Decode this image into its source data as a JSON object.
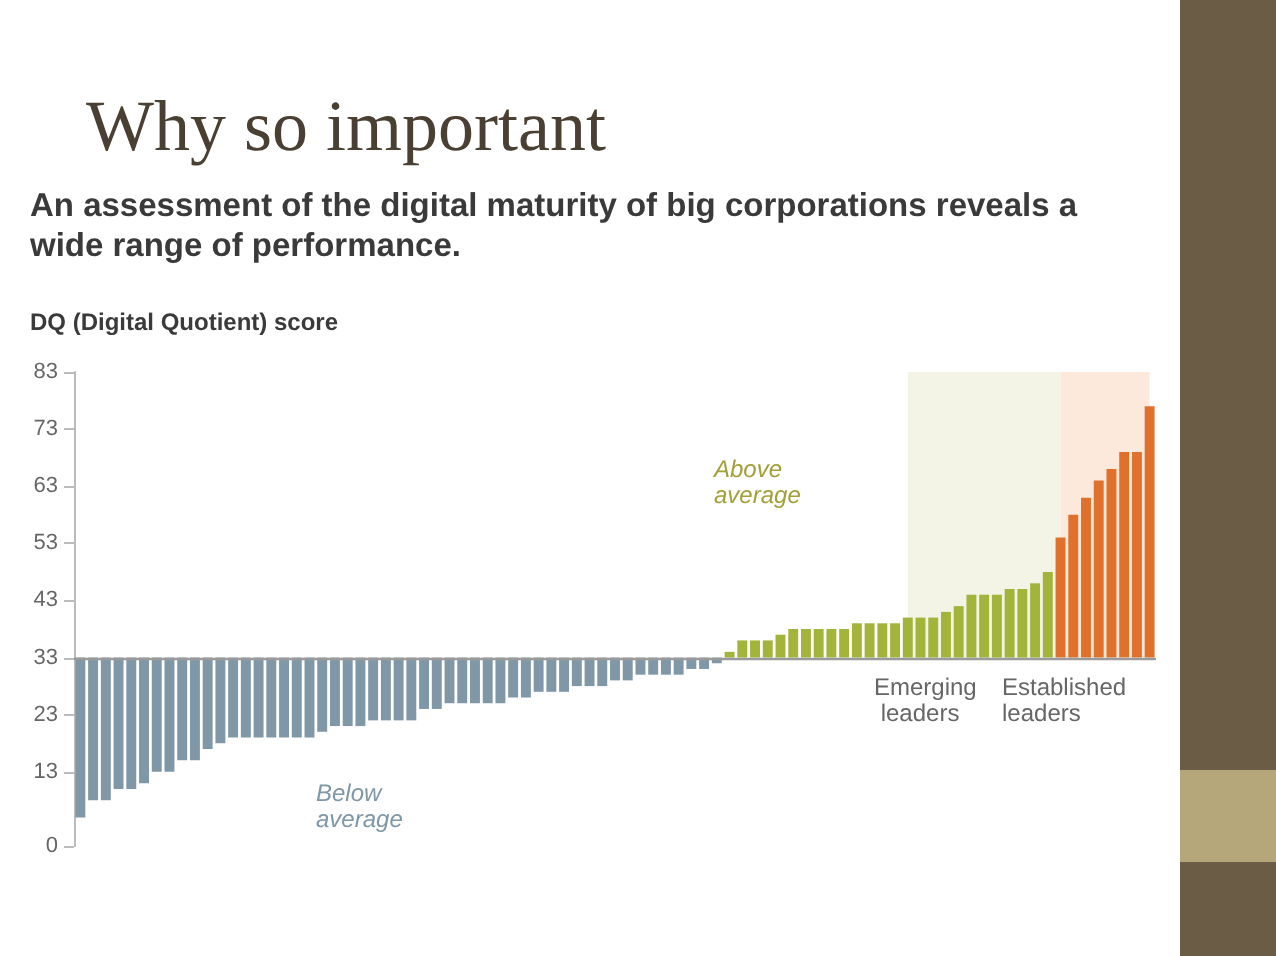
{
  "chart_data": {
    "type": "bar",
    "title": "Why so important",
    "subtitle": "An assessment of the digital maturity of big corporations reveals a wide range of performance.",
    "ylabel": "DQ (Digital Quotient) score",
    "categories": [
      null,
      null,
      null,
      null,
      null,
      null,
      null,
      null,
      null,
      null,
      null,
      null,
      null,
      null,
      null,
      null,
      null,
      null,
      null,
      null,
      null,
      null,
      null,
      null,
      null,
      null,
      null,
      null,
      null,
      null,
      null,
      null,
      null,
      null,
      null,
      null,
      null,
      null,
      null,
      null,
      null,
      null,
      null,
      null,
      null,
      null,
      null,
      null,
      null,
      null,
      null,
      null,
      null,
      null,
      null,
      null,
      null,
      null,
      null,
      null,
      null,
      null,
      null,
      null,
      null,
      null,
      null,
      null,
      null,
      null,
      null,
      null,
      null,
      null,
      null,
      null,
      null,
      null,
      null,
      null,
      null,
      null,
      null,
      null,
      null
    ],
    "ylim": [
      0,
      83
    ],
    "yticks": [
      0,
      13,
      23,
      33,
      43,
      53,
      63,
      73,
      83
    ],
    "tick_labels": "y",
    "grid": false,
    "base": [
      33,
      33,
      33,
      33,
      33,
      33,
      33,
      33,
      33,
      33,
      33,
      33,
      33,
      33,
      33,
      33,
      33,
      33,
      33,
      33,
      33,
      33,
      33,
      33,
      33,
      33,
      33,
      33,
      33,
      33,
      33,
      33,
      33,
      33,
      33,
      33,
      33,
      33,
      33,
      33,
      33,
      33,
      33,
      33,
      33,
      33,
      33,
      33,
      33,
      33,
      33,
      33,
      33,
      33,
      33,
      33,
      33,
      33,
      33,
      33,
      33,
      33,
      33,
      33,
      33,
      33,
      33,
      33,
      33,
      33,
      33,
      33,
      33,
      33,
      33,
      33,
      33,
      33,
      33,
      33,
      33,
      33,
      33,
      33,
      33
    ],
    "values": [
      -28,
      -25,
      -25,
      -23,
      -23,
      -22,
      -20,
      -20,
      -18,
      -18,
      -16,
      -15,
      -14,
      -14,
      -14,
      -14,
      -14,
      -14,
      -14,
      -13,
      -12,
      -12,
      -12,
      -11,
      -11,
      -11,
      -11,
      -9,
      -9,
      -8,
      -8,
      -8,
      -8,
      -8,
      -7,
      -7,
      -6,
      -6,
      -6,
      -5,
      -5,
      -5,
      -4,
      -4,
      -3,
      -3,
      -3,
      -3,
      -2,
      -2,
      -1,
      1,
      3,
      3,
      3,
      4,
      5,
      5,
      5,
      5,
      5,
      6,
      6,
      6,
      6,
      7,
      7,
      7,
      8,
      9,
      11,
      11,
      11,
      12,
      12,
      13,
      15,
      21,
      25,
      28,
      31,
      33,
      36,
      36,
      44
    ],
    "colors": [
      "#7f97a6",
      "#7f97a6",
      "#7f97a6",
      "#7f97a6",
      "#7f97a6",
      "#7f97a6",
      "#7f97a6",
      "#7f97a6",
      "#7f97a6",
      "#7f97a6",
      "#7f97a6",
      "#7f97a6",
      "#7f97a6",
      "#7f97a6",
      "#7f97a6",
      "#7f97a6",
      "#7f97a6",
      "#7f97a6",
      "#7f97a6",
      "#7f97a6",
      "#7f97a6",
      "#7f97a6",
      "#7f97a6",
      "#7f97a6",
      "#7f97a6",
      "#7f97a6",
      "#7f97a6",
      "#7f97a6",
      "#7f97a6",
      "#7f97a6",
      "#7f97a6",
      "#7f97a6",
      "#7f97a6",
      "#7f97a6",
      "#7f97a6",
      "#7f97a6",
      "#7f97a6",
      "#7f97a6",
      "#7f97a6",
      "#7f97a6",
      "#7f97a6",
      "#7f97a6",
      "#7f97a6",
      "#7f97a6",
      "#7f97a6",
      "#7f97a6",
      "#7f97a6",
      "#7f97a6",
      "#7f97a6",
      "#7f97a6",
      "#7f97a6",
      "#a3b43a",
      "#a3b43a",
      "#a3b43a",
      "#a3b43a",
      "#a3b43a",
      "#a3b43a",
      "#a3b43a",
      "#a3b43a",
      "#a3b43a",
      "#a3b43a",
      "#a3b43a",
      "#a3b43a",
      "#a3b43a",
      "#a3b43a",
      "#a3b43a",
      "#a3b43a",
      "#a3b43a",
      "#a3b43a",
      "#a3b43a",
      "#a3b43a",
      "#a3b43a",
      "#a3b43a",
      "#a3b43a",
      "#a3b43a",
      "#a3b43a",
      "#a3b43a",
      "#e0712c",
      "#e0712c",
      "#e0712c",
      "#e0712c",
      "#e0712c",
      "#e0712c",
      "#e0712c",
      "#e0712c"
    ],
    "ref_lines": [
      {
        "axis": "y",
        "value": 33,
        "color": "#9a9a9a"
      }
    ],
    "annotations": [
      "Below average",
      "Above average",
      "Emerging leaders",
      "Established leaders"
    ]
  }
}
